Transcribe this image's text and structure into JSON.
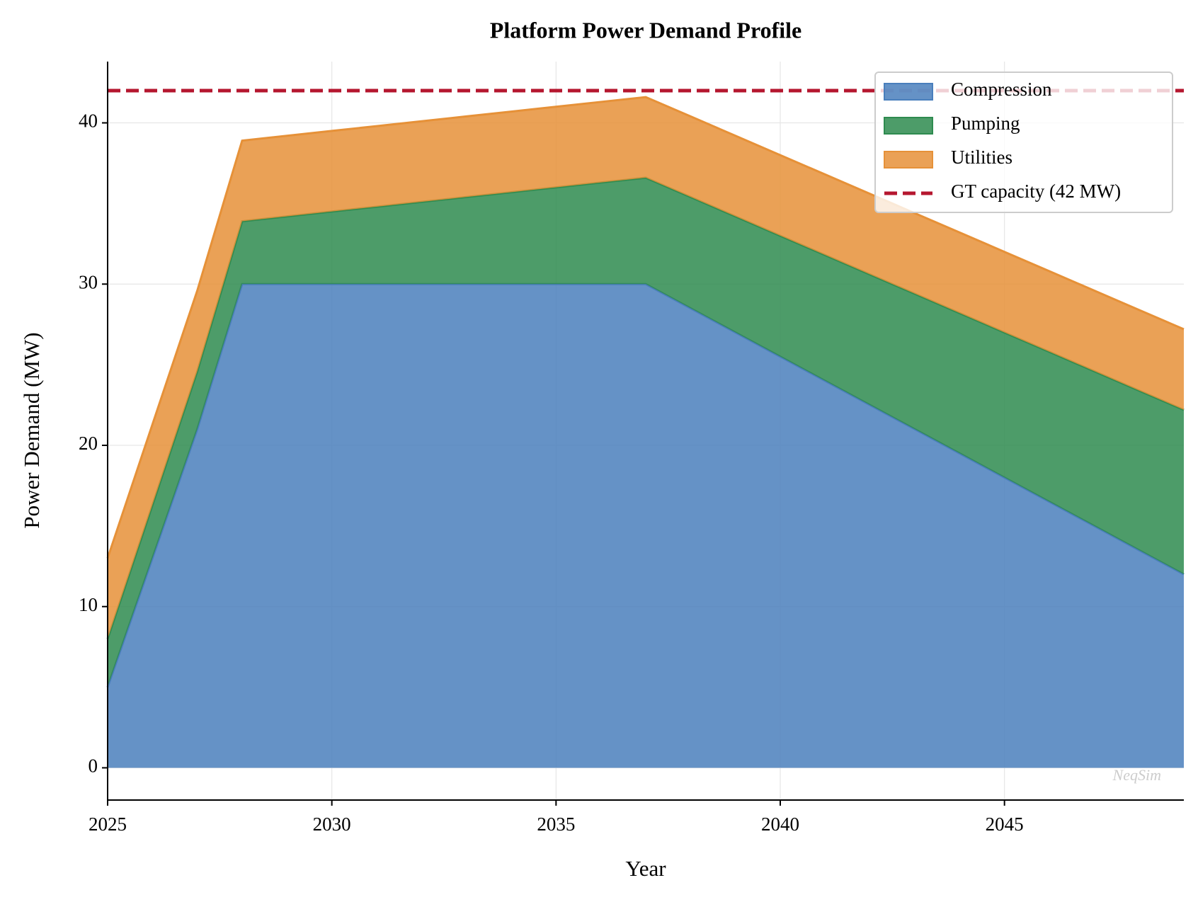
{
  "chart_data": {
    "type": "stacked-area",
    "title": "Platform Power Demand Profile",
    "x_label": "Year",
    "y_label": "Power Demand (MW)",
    "x": [
      2025,
      2026,
      2027,
      2028,
      2029,
      2030,
      2031,
      2032,
      2033,
      2034,
      2035,
      2036,
      2037,
      2038,
      2039,
      2040,
      2041,
      2042,
      2043,
      2044,
      2045,
      2046,
      2047,
      2048,
      2049
    ],
    "series": [
      {
        "name": "Compression",
        "color": "#4a7fbc",
        "values": [
          5,
          13,
          21,
          30,
          30,
          30,
          30,
          30,
          30,
          30,
          30,
          30,
          30,
          28.5,
          27,
          25.5,
          24,
          22.5,
          21,
          19.5,
          18,
          16.5,
          15,
          13.5,
          12
        ]
      },
      {
        "name": "Pumping",
        "color": "#2e8b4f",
        "values": [
          3,
          3.3,
          3.6,
          3.9,
          4.2,
          4.5,
          4.8,
          5.1,
          5.4,
          5.7,
          6,
          6.3,
          6.6,
          6.9,
          7.2,
          7.5,
          7.8,
          8.1,
          8.4,
          8.7,
          9,
          9.3,
          9.6,
          9.9,
          10.2
        ]
      },
      {
        "name": "Utilities",
        "color": "#e69138",
        "values": [
          5,
          5,
          5,
          5,
          5,
          5,
          5,
          5,
          5,
          5,
          5,
          5,
          5,
          5,
          5,
          5,
          5,
          5,
          5,
          5,
          5,
          5,
          5,
          5,
          5
        ]
      }
    ],
    "hlines": [
      {
        "value": 42,
        "label": "GT capacity (42 MW)",
        "color": "#b5172f"
      }
    ],
    "xlim": [
      2025,
      2049
    ],
    "ylim": [
      -2,
      43.8
    ],
    "xticks": [
      2025,
      2030,
      2035,
      2040,
      2045
    ],
    "yticks": [
      0,
      10,
      20,
      30,
      40
    ],
    "grid": true,
    "legend": "upper right",
    "watermark": "NeqSim"
  }
}
